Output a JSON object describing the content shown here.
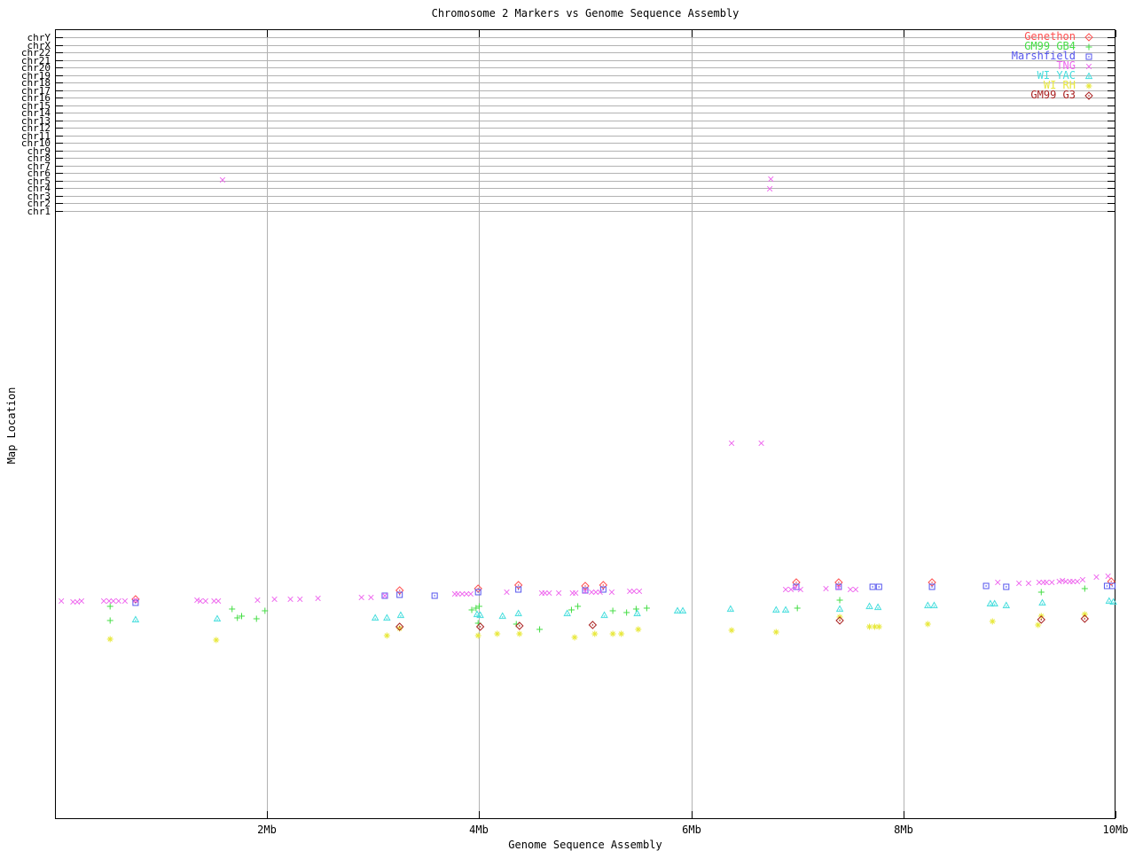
{
  "chart_data": {
    "type": "scatter",
    "title": "Chromosome 2 Markers vs Genome Sequence Assembly",
    "xlabel": "Genome Sequence Assembly",
    "ylabel": "Map Location",
    "x_unit": "Mb",
    "xlim_mb": [
      0,
      10
    ],
    "x_ticks": [
      {
        "label": "2Mb",
        "mb": 2,
        "grid": true
      },
      {
        "label": "4Mb",
        "mb": 4,
        "grid": true
      },
      {
        "label": "6Mb",
        "mb": 6,
        "grid": true
      },
      {
        "label": "8Mb",
        "mb": 8,
        "grid": true
      },
      {
        "label": "10Mb",
        "mb": 10,
        "grid": false
      }
    ],
    "y_categories": [
      "chrY",
      "chrX",
      "chr22",
      "chr21",
      "chr20",
      "chr19",
      "chr18",
      "chr17",
      "chr16",
      "chr15",
      "chr14",
      "chr13",
      "chr12",
      "chr11",
      "chr10",
      "chr9",
      "chr8",
      "chr7",
      "chr6",
      "chr5",
      "chr4",
      "chr3",
      "chr2",
      "chr1"
    ],
    "y_scale_note": "no numeric y axis shown; point y values are vertical screen positions (px) estimated from the plot",
    "grid": true,
    "grid_color": "#b2b2b2",
    "legend_position": "top-right-inside",
    "series": [
      {
        "name": "Genethon",
        "color": "#ff5050",
        "marker": "diamond-open-dot",
        "points": [
          [
            0.76,
            676
          ],
          [
            3.25,
            666
          ],
          [
            3.99,
            664
          ],
          [
            4.37,
            660
          ],
          [
            5.0,
            661
          ],
          [
            5.17,
            660
          ],
          [
            6.99,
            657
          ],
          [
            7.39,
            657
          ],
          [
            8.27,
            657
          ],
          [
            9.96,
            656
          ]
        ]
      },
      {
        "name": "GM99 GB4",
        "color": "#44dd44",
        "marker": "plus",
        "points": [
          [
            0.52,
            684
          ],
          [
            0.52,
            700
          ],
          [
            1.67,
            687
          ],
          [
            1.72,
            697
          ],
          [
            1.76,
            695
          ],
          [
            1.9,
            698
          ],
          [
            1.98,
            689
          ],
          [
            3.93,
            688
          ],
          [
            3.97,
            686
          ],
          [
            4.0,
            684
          ],
          [
            3.99,
            703
          ],
          [
            4.35,
            704
          ],
          [
            4.57,
            710
          ],
          [
            4.87,
            688
          ],
          [
            4.93,
            684
          ],
          [
            5.26,
            689
          ],
          [
            5.39,
            691
          ],
          [
            5.48,
            687
          ],
          [
            5.58,
            686
          ],
          [
            7.0,
            686
          ],
          [
            7.4,
            677
          ],
          [
            9.3,
            668
          ],
          [
            9.71,
            664
          ]
        ]
      },
      {
        "name": "Marshfield",
        "color": "#5555ee",
        "marker": "square-open-dot",
        "points": [
          [
            0.76,
            680
          ],
          [
            3.11,
            672
          ],
          [
            3.25,
            671
          ],
          [
            3.58,
            672
          ],
          [
            3.99,
            668
          ],
          [
            4.37,
            665
          ],
          [
            5.0,
            666
          ],
          [
            5.17,
            665
          ],
          [
            6.99,
            662
          ],
          [
            7.39,
            662
          ],
          [
            7.71,
            662
          ],
          [
            7.77,
            662
          ],
          [
            8.27,
            662
          ],
          [
            8.78,
            661
          ],
          [
            8.97,
            662
          ],
          [
            9.92,
            661
          ],
          [
            9.97,
            661
          ]
        ]
      },
      {
        "name": "TNG",
        "color": "#ee66ee",
        "marker": "cross",
        "points": [
          [
            0.06,
            678
          ],
          [
            0.17,
            679
          ],
          [
            0.21,
            679
          ],
          [
            0.25,
            678
          ],
          [
            0.46,
            678
          ],
          [
            0.51,
            678
          ],
          [
            0.55,
            678
          ],
          [
            0.6,
            678
          ],
          [
            0.66,
            678
          ],
          [
            0.76,
            677
          ],
          [
            1.34,
            677
          ],
          [
            1.37,
            678
          ],
          [
            1.42,
            678
          ],
          [
            1.5,
            678
          ],
          [
            1.54,
            678
          ],
          [
            1.91,
            677
          ],
          [
            2.07,
            676
          ],
          [
            2.22,
            676
          ],
          [
            2.31,
            676
          ],
          [
            2.48,
            675
          ],
          [
            2.89,
            674
          ],
          [
            2.98,
            674
          ],
          [
            3.11,
            672
          ],
          [
            3.77,
            670
          ],
          [
            3.8,
            670
          ],
          [
            3.84,
            670
          ],
          [
            3.88,
            670
          ],
          [
            3.92,
            670
          ],
          [
            4.26,
            668
          ],
          [
            4.59,
            669
          ],
          [
            4.62,
            669
          ],
          [
            4.66,
            669
          ],
          [
            4.75,
            669
          ],
          [
            4.88,
            669
          ],
          [
            4.91,
            669
          ],
          [
            5.0,
            667
          ],
          [
            5.06,
            668
          ],
          [
            5.1,
            668
          ],
          [
            5.14,
            668
          ],
          [
            5.25,
            668
          ],
          [
            5.42,
            667
          ],
          [
            5.46,
            667
          ],
          [
            5.51,
            667
          ],
          [
            6.89,
            665
          ],
          [
            6.94,
            665
          ],
          [
            6.98,
            663
          ],
          [
            7.03,
            665
          ],
          [
            7.27,
            664
          ],
          [
            7.39,
            663
          ],
          [
            7.5,
            665
          ],
          [
            7.55,
            665
          ],
          [
            8.89,
            657
          ],
          [
            9.09,
            658
          ],
          [
            9.18,
            658
          ],
          [
            9.28,
            657
          ],
          [
            9.32,
            657
          ],
          [
            9.35,
            657
          ],
          [
            9.4,
            657
          ],
          [
            9.47,
            656
          ],
          [
            9.5,
            655
          ],
          [
            9.53,
            656
          ],
          [
            9.57,
            656
          ],
          [
            9.6,
            656
          ],
          [
            9.64,
            656
          ],
          [
            9.69,
            654
          ],
          [
            9.82,
            651
          ],
          [
            9.93,
            650
          ],
          [
            1.58,
            203
          ],
          [
            6.75,
            202
          ],
          [
            6.74,
            213
          ],
          [
            6.38,
            500
          ],
          [
            6.66,
            500
          ]
        ]
      },
      {
        "name": "WI YAC",
        "color": "#44dddd",
        "marker": "triangle-open-dot",
        "points": [
          [
            0.76,
            699
          ],
          [
            1.53,
            698
          ],
          [
            3.02,
            697
          ],
          [
            3.13,
            697
          ],
          [
            3.26,
            694
          ],
          [
            3.98,
            693
          ],
          [
            4.01,
            694
          ],
          [
            4.22,
            695
          ],
          [
            4.37,
            692
          ],
          [
            4.83,
            692
          ],
          [
            5.18,
            694
          ],
          [
            5.49,
            692
          ],
          [
            5.87,
            689
          ],
          [
            5.92,
            689
          ],
          [
            6.37,
            687
          ],
          [
            6.8,
            688
          ],
          [
            6.89,
            688
          ],
          [
            7.4,
            687
          ],
          [
            7.68,
            684
          ],
          [
            7.76,
            685
          ],
          [
            8.23,
            683
          ],
          [
            8.29,
            683
          ],
          [
            8.82,
            681
          ],
          [
            8.86,
            681
          ],
          [
            8.97,
            683
          ],
          [
            9.31,
            680
          ],
          [
            9.94,
            678
          ],
          [
            9.98,
            679
          ]
        ]
      },
      {
        "name": "WI RH",
        "color": "#e8e83c",
        "marker": "star",
        "points": [
          [
            0.52,
            721
          ],
          [
            1.52,
            722
          ],
          [
            3.13,
            717
          ],
          [
            3.25,
            709
          ],
          [
            3.99,
            717
          ],
          [
            4.17,
            715
          ],
          [
            4.38,
            715
          ],
          [
            4.9,
            719
          ],
          [
            5.09,
            715
          ],
          [
            5.26,
            715
          ],
          [
            5.34,
            715
          ],
          [
            5.5,
            710
          ],
          [
            6.38,
            711
          ],
          [
            6.8,
            713
          ],
          [
            7.4,
            696
          ],
          [
            7.68,
            707
          ],
          [
            7.73,
            707
          ],
          [
            7.77,
            707
          ],
          [
            8.23,
            704
          ],
          [
            8.84,
            701
          ],
          [
            9.27,
            705
          ],
          [
            9.3,
            695
          ],
          [
            9.71,
            693
          ]
        ]
      },
      {
        "name": "GM99 G3",
        "color": "#aa2222",
        "marker": "diamond-open-dot",
        "points": [
          [
            3.25,
            707
          ],
          [
            4.01,
            707
          ],
          [
            4.38,
            706
          ],
          [
            5.07,
            705
          ],
          [
            7.4,
            700
          ],
          [
            9.3,
            699
          ],
          [
            9.71,
            698
          ]
        ]
      }
    ]
  }
}
